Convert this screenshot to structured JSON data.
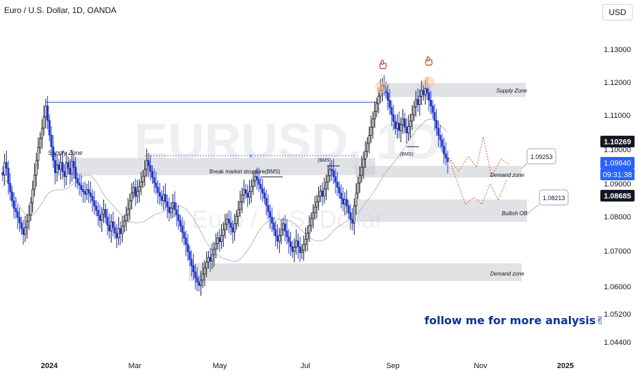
{
  "header": {
    "symbol_title": "Euro / U.S. Dollar, 1D, OANDA",
    "currency": "USD"
  },
  "watermark": {
    "main": "EURUSD, 1D",
    "sub": "Euro / U.S. Dollar"
  },
  "annotations": {
    "follow_text": "follow me for more analysis✌",
    "supply_zone_left": "Supply Zone",
    "supply_zone_right": "Supply Zone",
    "demand_zone_mid": "Demand zone",
    "bullish_ob": "Bullish OB",
    "demand_zone_low": "Demand zone",
    "bms_long": "Break market structure(BMS)",
    "bms_jul": "(BMS)",
    "bms_sep": "(BMS)",
    "x_mark": "x",
    "target_1": "1.09253",
    "target_2": "1.08213"
  },
  "chart_data": {
    "type": "candlestick",
    "instrument": "EURUSD",
    "x_ticks": [
      "2024",
      "Mar",
      "May",
      "Jul",
      "Sep",
      "Nov",
      "2025"
    ],
    "y_ticks": [
      "1.13000",
      "1.12000",
      "1.11000",
      "1.10000",
      "1.09000",
      "1.08000",
      "1.07000",
      "1.06000",
      "1.05200",
      "1.04400"
    ],
    "ylim": [
      1.04,
      1.135
    ],
    "price_labels": [
      {
        "value": "1.10269",
        "kind": "dark"
      },
      {
        "value": "1.09640",
        "kind": "current"
      },
      {
        "value": "09:31:38",
        "kind": "current"
      },
      {
        "value": "1.08685",
        "kind": "dark"
      }
    ],
    "zones": [
      {
        "label": "Supply Zone",
        "top": 1.0975,
        "bottom": 1.0925
      },
      {
        "label": "Supply Zone",
        "top": 1.1198,
        "bottom": 1.1155
      },
      {
        "label": "Demand zone",
        "top": 1.0952,
        "bottom": 1.0918
      },
      {
        "label": "Bullish OB",
        "top": 1.0852,
        "bottom": 1.0785
      },
      {
        "label": "Demand zone",
        "top": 1.0665,
        "bottom": 1.0615
      }
    ],
    "key_levels": [
      {
        "label": "high",
        "value": 1.1139
      },
      {
        "label": "BMS",
        "value": 1.0982
      }
    ],
    "closes": [
      1.0925,
      1.0962,
      1.0945,
      1.0901,
      1.0875,
      1.0848,
      1.0825,
      1.0815,
      1.0798,
      1.0782,
      1.0765,
      1.0748,
      1.0769,
      1.0787,
      1.0805,
      1.0842,
      1.0883,
      1.0925,
      1.0968,
      1.1005,
      1.1032,
      1.1062,
      1.1095,
      1.1128,
      1.1085,
      1.1042,
      1.1008,
      1.0968,
      1.0932,
      1.0955,
      1.0942,
      1.0962,
      1.0935,
      1.0921,
      1.0962,
      1.0945,
      1.0928,
      1.0965,
      1.0948,
      1.0915,
      1.0902,
      1.0895,
      1.0882,
      1.0876,
      1.0868,
      1.0882,
      1.0872,
      1.0862,
      1.0848,
      1.0832,
      1.0819,
      1.0803,
      1.0789,
      1.0807,
      1.0822,
      1.0798,
      1.0775,
      1.0758,
      1.0785,
      1.0768,
      1.0752,
      1.0738,
      1.0765,
      1.0751,
      1.0772,
      1.0788,
      1.0805,
      1.0823,
      1.0848,
      1.0872,
      1.0889,
      1.0862,
      1.0877,
      1.0891,
      1.0905,
      1.0922,
      1.0942,
      1.0968,
      1.0953,
      1.0936,
      1.0918,
      1.0902,
      1.0889,
      1.0873,
      1.0862,
      1.0849,
      1.0867,
      1.0845,
      1.0829,
      1.0812,
      1.0826,
      1.0843,
      1.0821,
      1.0805,
      1.0788,
      1.0773,
      1.0754,
      1.0737,
      1.0719,
      1.0698,
      1.0676,
      1.0658,
      1.0641,
      1.0625,
      1.0612,
      1.0603,
      1.0618,
      1.0635,
      1.0652,
      1.0668,
      1.0682,
      1.0671,
      1.0689,
      1.0705,
      1.0721,
      1.0738,
      1.0727,
      1.0745,
      1.0762,
      1.0778,
      1.0793,
      1.0782,
      1.0768,
      1.0755,
      1.0779,
      1.0801,
      1.0822,
      1.0845,
      1.0866,
      1.0882,
      1.0871,
      1.0859,
      1.0876,
      1.0892,
      1.0908,
      1.0921,
      1.0912,
      1.0898,
      1.0885,
      1.0872,
      1.0856,
      1.0834,
      1.0815,
      1.0798,
      1.0781,
      1.0762,
      1.0743,
      1.0728,
      1.0745,
      1.0762,
      1.0779,
      1.0758,
      1.0741,
      1.0726,
      1.0712,
      1.0698,
      1.0711,
      1.0729,
      1.0712,
      1.0695,
      1.0702,
      1.0719,
      1.0734,
      1.0752,
      1.0774,
      1.0795,
      1.0812,
      1.0829,
      1.0845,
      1.0862,
      1.0878,
      1.0862,
      1.0884,
      1.0905,
      1.0923,
      1.0942,
      1.0938,
      1.0921,
      1.0904,
      1.0889,
      1.0872,
      1.0855,
      1.0838,
      1.0852,
      1.0833,
      1.0812,
      1.0792,
      1.0781,
      1.0833,
      1.0871,
      1.0902,
      1.0925,
      1.0948,
      1.0972,
      1.0995,
      1.1018,
      1.1041,
      1.1065,
      1.1089,
      1.1112,
      1.1135,
      1.1158,
      1.1175,
      1.1191,
      1.1185,
      1.1168,
      1.1145,
      1.1123,
      1.1102,
      1.1082,
      1.1061,
      1.1077,
      1.1055,
      1.1072,
      1.1089,
      1.1065,
      1.1048,
      1.1067,
      1.1083,
      1.1101,
      1.1125,
      1.1148,
      1.1132,
      1.1157,
      1.1175,
      1.1162,
      1.1181,
      1.1168,
      1.1145,
      1.1128,
      1.1108,
      1.1085,
      1.1062,
      1.1041,
      1.1028,
      1.1009,
      1.0987,
      1.0975,
      1.0964
    ]
  }
}
